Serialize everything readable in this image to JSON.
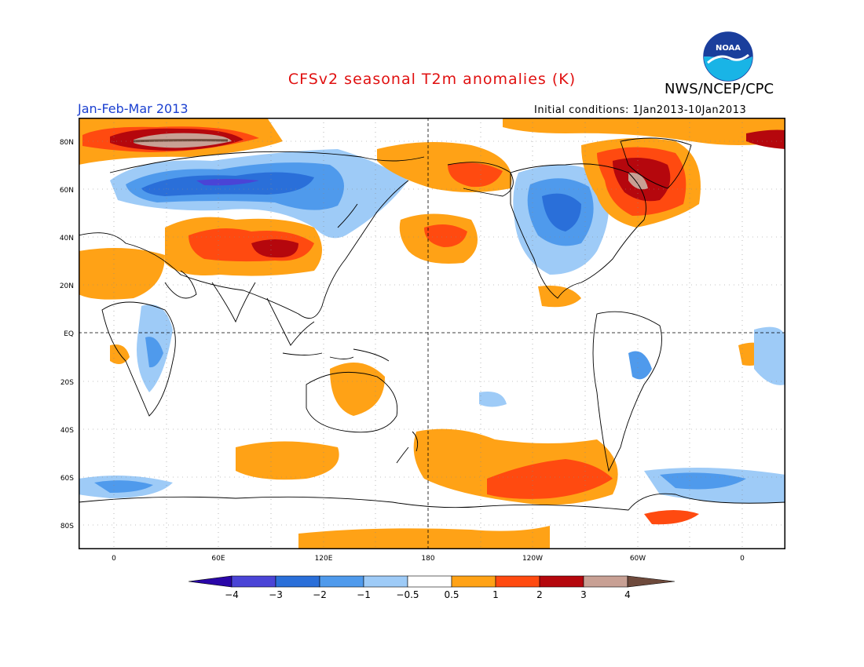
{
  "header": {
    "title": "CFSv2 seasonal T2m anomalies (K)",
    "agency": "NWS/NCEP/CPC",
    "period": "Jan-Feb-Mar 2013",
    "initial_conditions": "Initial conditions: 1Jan2013-10Jan2013",
    "logo_text": "NOAA"
  },
  "map": {
    "projection": "cylindrical equidistant",
    "lat_labels": [
      "80N",
      "60N",
      "40N",
      "20N",
      "EQ",
      "20S",
      "40S",
      "60S",
      "80S"
    ],
    "lon_labels": [
      "0",
      "60E",
      "120E",
      "180",
      "120W",
      "60W",
      "0"
    ],
    "grid": "dotted 20° lat / 30° lon, dashed equator and 180 meridian",
    "units": "K"
  },
  "legend": {
    "ticks": [
      "−4",
      "−3",
      "−2",
      "−1",
      "−0.5",
      "0.5",
      "1",
      "2",
      "3",
      "4"
    ],
    "colors": [
      "#2a06a8",
      "#4a44d6",
      "#2a6fd9",
      "#4f9aec",
      "#9ecbf7",
      "#ffffff",
      "#ffa216",
      "#ff4a10",
      "#b5070d",
      "#c8a094",
      "#6e4a3c"
    ]
  }
}
